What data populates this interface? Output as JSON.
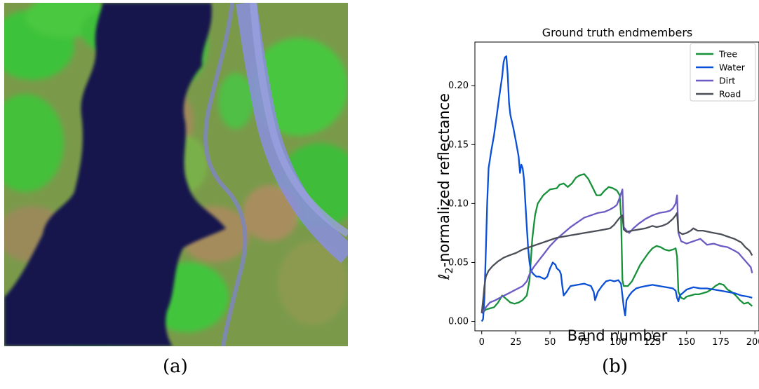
{
  "panels": {
    "a": {
      "caption": "(a)",
      "image": "false-color aerial image of river, forest and roads"
    },
    "b": {
      "caption": "(b)"
    }
  },
  "colors": {
    "tree": "#16913a",
    "water": "#0a4fd6",
    "dirt": "#6a5bc4",
    "road": "#4a4e57"
  },
  "chart_data": {
    "type": "line",
    "title": "Ground truth endmembers",
    "xlabel": "Band number",
    "ylabel": "ℓ2-normalized reflectance",
    "xlim": [
      -5,
      203
    ],
    "ylim": [
      -0.008,
      0.237
    ],
    "xticks": [
      0,
      25,
      50,
      75,
      100,
      125,
      150,
      175,
      200
    ],
    "yticks": [
      "0.00",
      "0.05",
      "0.10",
      "0.15",
      "0.20"
    ],
    "grid": false,
    "legend": "top-right",
    "series": [
      {
        "name": "Tree",
        "color": "#16913a",
        "points": [
          [
            0,
            0.007
          ],
          [
            3,
            0.01
          ],
          [
            6,
            0.011
          ],
          [
            9,
            0.012
          ],
          [
            12,
            0.016
          ],
          [
            15,
            0.022
          ],
          [
            18,
            0.019
          ],
          [
            21,
            0.016
          ],
          [
            24,
            0.015
          ],
          [
            27,
            0.016
          ],
          [
            30,
            0.018
          ],
          [
            33,
            0.022
          ],
          [
            35,
            0.035
          ],
          [
            37,
            0.07
          ],
          [
            39,
            0.09
          ],
          [
            41,
            0.1
          ],
          [
            45,
            0.107
          ],
          [
            50,
            0.112
          ],
          [
            55,
            0.113
          ],
          [
            57,
            0.116
          ],
          [
            60,
            0.117
          ],
          [
            63,
            0.114
          ],
          [
            66,
            0.117
          ],
          [
            69,
            0.122
          ],
          [
            72,
            0.124
          ],
          [
            75,
            0.125
          ],
          [
            78,
            0.121
          ],
          [
            81,
            0.114
          ],
          [
            84,
            0.107
          ],
          [
            87,
            0.107
          ],
          [
            90,
            0.111
          ],
          [
            93,
            0.114
          ],
          [
            96,
            0.113
          ],
          [
            99,
            0.111
          ],
          [
            101,
            0.107
          ],
          [
            102,
            0.09
          ],
          [
            103,
            0.035
          ],
          [
            104,
            0.03
          ],
          [
            107,
            0.03
          ],
          [
            110,
            0.034
          ],
          [
            113,
            0.041
          ],
          [
            116,
            0.048
          ],
          [
            119,
            0.053
          ],
          [
            122,
            0.058
          ],
          [
            125,
            0.062
          ],
          [
            128,
            0.064
          ],
          [
            131,
            0.063
          ],
          [
            134,
            0.061
          ],
          [
            137,
            0.06
          ],
          [
            140,
            0.061
          ],
          [
            142,
            0.062
          ],
          [
            143,
            0.055
          ],
          [
            144,
            0.025
          ],
          [
            146,
            0.02
          ],
          [
            148,
            0.019
          ],
          [
            150,
            0.021
          ],
          [
            153,
            0.022
          ],
          [
            156,
            0.023
          ],
          [
            159,
            0.023
          ],
          [
            162,
            0.024
          ],
          [
            165,
            0.025
          ],
          [
            168,
            0.027
          ],
          [
            171,
            0.03
          ],
          [
            174,
            0.032
          ],
          [
            177,
            0.031
          ],
          [
            180,
            0.027
          ],
          [
            183,
            0.025
          ],
          [
            186,
            0.022
          ],
          [
            189,
            0.018
          ],
          [
            192,
            0.015
          ],
          [
            195,
            0.016
          ],
          [
            198,
            0.013
          ]
        ]
      },
      {
        "name": "Water",
        "color": "#0a4fd6",
        "points": [
          [
            0,
            0.0
          ],
          [
            1,
            0.002
          ],
          [
            2,
            0.02
          ],
          [
            3,
            0.06
          ],
          [
            4,
            0.1
          ],
          [
            5,
            0.13
          ],
          [
            7,
            0.145
          ],
          [
            9,
            0.158
          ],
          [
            11,
            0.175
          ],
          [
            13,
            0.192
          ],
          [
            15,
            0.208
          ],
          [
            16,
            0.22
          ],
          [
            17,
            0.224
          ],
          [
            18,
            0.225
          ],
          [
            19,
            0.21
          ],
          [
            20,
            0.185
          ],
          [
            21,
            0.175
          ],
          [
            23,
            0.165
          ],
          [
            25,
            0.153
          ],
          [
            27,
            0.14
          ],
          [
            28,
            0.126
          ],
          [
            29,
            0.133
          ],
          [
            30,
            0.13
          ],
          [
            31,
            0.12
          ],
          [
            32,
            0.1
          ],
          [
            33,
            0.08
          ],
          [
            34,
            0.062
          ],
          [
            35,
            0.05
          ],
          [
            36,
            0.043
          ],
          [
            38,
            0.04
          ],
          [
            40,
            0.038
          ],
          [
            42,
            0.038
          ],
          [
            44,
            0.037
          ],
          [
            46,
            0.036
          ],
          [
            48,
            0.038
          ],
          [
            50,
            0.045
          ],
          [
            52,
            0.05
          ],
          [
            54,
            0.048
          ],
          [
            55,
            0.045
          ],
          [
            57,
            0.043
          ],
          [
            58,
            0.04
          ],
          [
            59,
            0.03
          ],
          [
            60,
            0.022
          ],
          [
            62,
            0.025
          ],
          [
            65,
            0.03
          ],
          [
            70,
            0.031
          ],
          [
            75,
            0.032
          ],
          [
            80,
            0.03
          ],
          [
            82,
            0.025
          ],
          [
            83,
            0.018
          ],
          [
            85,
            0.025
          ],
          [
            88,
            0.03
          ],
          [
            91,
            0.034
          ],
          [
            94,
            0.035
          ],
          [
            97,
            0.034
          ],
          [
            100,
            0.035
          ],
          [
            102,
            0.032
          ],
          [
            103,
            0.022
          ],
          [
            104,
            0.012
          ],
          [
            105,
            0.005
          ],
          [
            106,
            0.018
          ],
          [
            108,
            0.022
          ],
          [
            110,
            0.025
          ],
          [
            113,
            0.028
          ],
          [
            116,
            0.029
          ],
          [
            120,
            0.03
          ],
          [
            125,
            0.031
          ],
          [
            130,
            0.03
          ],
          [
            135,
            0.029
          ],
          [
            140,
            0.028
          ],
          [
            142,
            0.026
          ],
          [
            143,
            0.02
          ],
          [
            144,
            0.017
          ],
          [
            145,
            0.022
          ],
          [
            147,
            0.024
          ],
          [
            150,
            0.027
          ],
          [
            155,
            0.029
          ],
          [
            160,
            0.028
          ],
          [
            165,
            0.028
          ],
          [
            170,
            0.027
          ],
          [
            175,
            0.026
          ],
          [
            180,
            0.025
          ],
          [
            185,
            0.024
          ],
          [
            190,
            0.022
          ],
          [
            195,
            0.021
          ],
          [
            198,
            0.02
          ]
        ]
      },
      {
        "name": "Dirt",
        "color": "#6a5bc4",
        "points": [
          [
            0,
            0.007
          ],
          [
            3,
            0.012
          ],
          [
            6,
            0.016
          ],
          [
            10,
            0.018
          ],
          [
            15,
            0.021
          ],
          [
            20,
            0.024
          ],
          [
            25,
            0.027
          ],
          [
            30,
            0.03
          ],
          [
            33,
            0.034
          ],
          [
            35,
            0.04
          ],
          [
            38,
            0.046
          ],
          [
            42,
            0.052
          ],
          [
            46,
            0.058
          ],
          [
            50,
            0.064
          ],
          [
            55,
            0.07
          ],
          [
            60,
            0.075
          ],
          [
            65,
            0.08
          ],
          [
            70,
            0.084
          ],
          [
            75,
            0.088
          ],
          [
            80,
            0.09
          ],
          [
            85,
            0.092
          ],
          [
            90,
            0.093
          ],
          [
            94,
            0.095
          ],
          [
            97,
            0.097
          ],
          [
            99,
            0.099
          ],
          [
            101,
            0.105
          ],
          [
            103,
            0.112
          ],
          [
            104,
            0.08
          ],
          [
            106,
            0.077
          ],
          [
            108,
            0.075
          ],
          [
            111,
            0.079
          ],
          [
            115,
            0.083
          ],
          [
            120,
            0.087
          ],
          [
            125,
            0.09
          ],
          [
            130,
            0.092
          ],
          [
            135,
            0.093
          ],
          [
            138,
            0.094
          ],
          [
            140,
            0.096
          ],
          [
            142,
            0.1
          ],
          [
            143,
            0.107
          ],
          [
            144,
            0.075
          ],
          [
            146,
            0.068
          ],
          [
            150,
            0.066
          ],
          [
            155,
            0.068
          ],
          [
            160,
            0.07
          ],
          [
            165,
            0.065
          ],
          [
            170,
            0.066
          ],
          [
            175,
            0.064
          ],
          [
            180,
            0.063
          ],
          [
            185,
            0.06
          ],
          [
            188,
            0.058
          ],
          [
            191,
            0.054
          ],
          [
            194,
            0.05
          ],
          [
            197,
            0.046
          ],
          [
            198,
            0.041
          ]
        ]
      },
      {
        "name": "Road",
        "color": "#4a4e57",
        "points": [
          [
            0,
            0.007
          ],
          [
            1,
            0.018
          ],
          [
            2,
            0.03
          ],
          [
            3,
            0.038
          ],
          [
            5,
            0.043
          ],
          [
            8,
            0.047
          ],
          [
            12,
            0.051
          ],
          [
            16,
            0.054
          ],
          [
            20,
            0.056
          ],
          [
            25,
            0.058
          ],
          [
            30,
            0.061
          ],
          [
            35,
            0.063
          ],
          [
            40,
            0.065
          ],
          [
            45,
            0.067
          ],
          [
            50,
            0.069
          ],
          [
            55,
            0.071
          ],
          [
            60,
            0.072
          ],
          [
            65,
            0.073
          ],
          [
            70,
            0.074
          ],
          [
            75,
            0.075
          ],
          [
            80,
            0.076
          ],
          [
            85,
            0.077
          ],
          [
            90,
            0.078
          ],
          [
            94,
            0.079
          ],
          [
            97,
            0.082
          ],
          [
            99,
            0.085
          ],
          [
            101,
            0.088
          ],
          [
            103,
            0.09
          ],
          [
            104,
            0.078
          ],
          [
            106,
            0.076
          ],
          [
            110,
            0.077
          ],
          [
            115,
            0.078
          ],
          [
            120,
            0.079
          ],
          [
            125,
            0.081
          ],
          [
            128,
            0.08
          ],
          [
            132,
            0.081
          ],
          [
            136,
            0.083
          ],
          [
            140,
            0.087
          ],
          [
            142,
            0.09
          ],
          [
            143,
            0.092
          ],
          [
            144,
            0.076
          ],
          [
            147,
            0.074
          ],
          [
            150,
            0.075
          ],
          [
            153,
            0.077
          ],
          [
            155,
            0.079
          ],
          [
            158,
            0.077
          ],
          [
            162,
            0.077
          ],
          [
            166,
            0.076
          ],
          [
            170,
            0.075
          ],
          [
            175,
            0.074
          ],
          [
            180,
            0.072
          ],
          [
            185,
            0.07
          ],
          [
            190,
            0.067
          ],
          [
            193,
            0.063
          ],
          [
            196,
            0.06
          ],
          [
            198,
            0.056
          ]
        ]
      }
    ]
  }
}
